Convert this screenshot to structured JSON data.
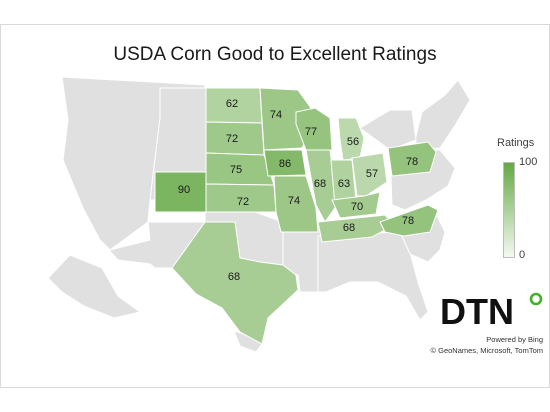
{
  "title": "USDA Corn Good to Excellent Ratings",
  "legend": {
    "title": "Ratings",
    "max_label": "100",
    "min_label": "0",
    "max_color": "#65a844",
    "min_color": "#f4f9f1"
  },
  "colors": {
    "no_data": "#e0e0e0",
    "border": "#ffffff"
  },
  "states": [
    {
      "name": "North Dakota",
      "rating": 62
    },
    {
      "name": "South Dakota",
      "rating": 72
    },
    {
      "name": "Nebraska",
      "rating": 75
    },
    {
      "name": "Kansas",
      "rating": 72
    },
    {
      "name": "Colorado",
      "rating": 90
    },
    {
      "name": "Texas",
      "rating": 68
    },
    {
      "name": "Minnesota",
      "rating": 74
    },
    {
      "name": "Iowa",
      "rating": 86
    },
    {
      "name": "Missouri",
      "rating": 74
    },
    {
      "name": "Wisconsin",
      "rating": 77
    },
    {
      "name": "Illinois",
      "rating": 68
    },
    {
      "name": "Michigan",
      "rating": 56
    },
    {
      "name": "Indiana",
      "rating": 63
    },
    {
      "name": "Ohio",
      "rating": 57
    },
    {
      "name": "Kentucky",
      "rating": 70
    },
    {
      "name": "Tennessee",
      "rating": 68
    },
    {
      "name": "North Carolina",
      "rating": 78
    },
    {
      "name": "Pennsylvania",
      "rating": 78
    }
  ],
  "logo_text": "DTN",
  "credit_line1": "Powered by Bing",
  "credit_line2": "© GeoNames, Microsoft, TomTom"
}
